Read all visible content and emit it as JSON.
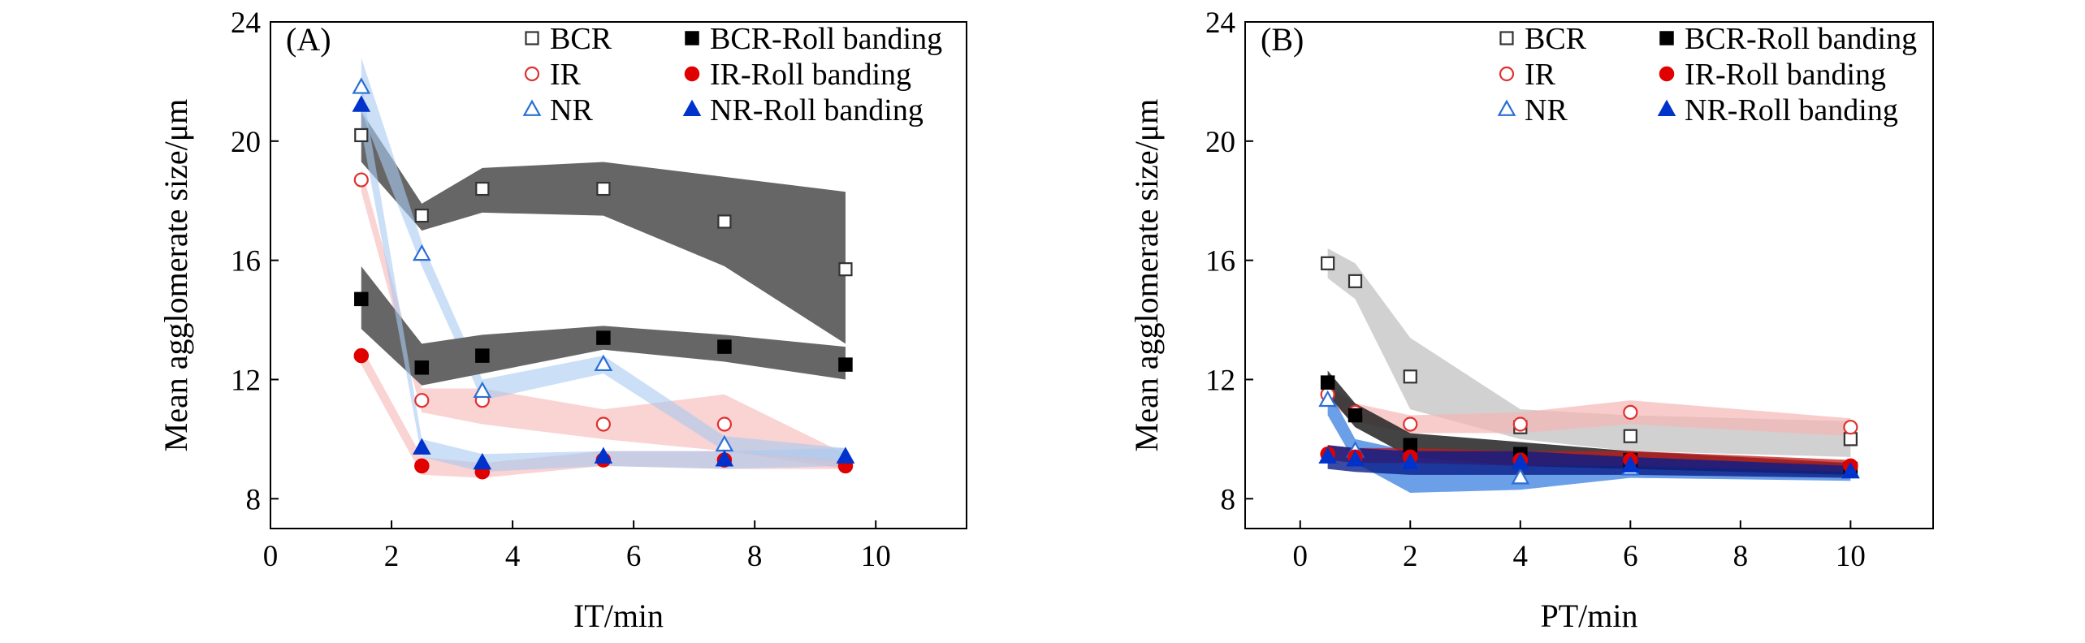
{
  "chart_data": [
    {
      "type": "scatter",
      "panel_label": "(A)",
      "xlabel": "IT/min",
      "ylabel": "Mean agglomerate size/μm",
      "xlim": [
        0,
        11.5
      ],
      "ylim": [
        7,
        24
      ],
      "xticks": [
        0,
        2,
        4,
        6,
        8,
        10
      ],
      "yticks": [
        8,
        12,
        16,
        20,
        24
      ],
      "legend_position": "top-right",
      "series": [
        {
          "key": "bcr",
          "name": "BCR",
          "marker": "square-open",
          "color": "#333333",
          "band_color": "#666666",
          "band_opacity": 1.0,
          "x": [
            1.5,
            2.5,
            3.5,
            5.5,
            7.5,
            9.5
          ],
          "y": [
            20.2,
            17.5,
            18.4,
            18.4,
            17.3,
            15.7
          ],
          "band_lower": [
            19.3,
            17.0,
            17.6,
            17.5,
            15.8,
            13.2
          ],
          "band_upper": [
            21.0,
            17.9,
            19.1,
            19.3,
            18.8,
            18.3
          ]
        },
        {
          "key": "bcr_roll",
          "name": "BCR-Roll banding",
          "marker": "square-filled",
          "color": "#000000",
          "band_color": "#666666",
          "band_opacity": 1.0,
          "x": [
            1.5,
            2.5,
            3.5,
            5.5,
            7.5,
            9.5
          ],
          "y": [
            14.7,
            12.4,
            12.8,
            13.4,
            13.1,
            12.5
          ],
          "band_lower": [
            13.7,
            11.8,
            12.2,
            13.0,
            12.6,
            12.0
          ],
          "band_upper": [
            15.8,
            13.2,
            13.5,
            13.8,
            13.5,
            13.1
          ]
        },
        {
          "key": "ir",
          "name": "IR",
          "marker": "circle-open",
          "color": "#e03030",
          "band_color": "#f6b6b6",
          "band_opacity": 0.6,
          "x": [
            1.5,
            2.5,
            3.5,
            5.5,
            7.5,
            9.5
          ],
          "y": [
            18.7,
            11.3,
            11.3,
            10.5,
            10.5,
            9.2
          ],
          "band_lower": [
            18.3,
            10.9,
            10.5,
            10.0,
            9.6,
            9.0
          ],
          "band_upper": [
            19.1,
            11.7,
            11.7,
            11.0,
            11.5,
            9.5
          ]
        },
        {
          "key": "ir_roll",
          "name": "IR-Roll banding",
          "marker": "circle-filled",
          "color": "#e00000",
          "band_color": "#f6b6b6",
          "band_opacity": 0.6,
          "x": [
            1.5,
            2.5,
            3.5,
            5.5,
            7.5,
            9.5
          ],
          "y": [
            12.8,
            9.1,
            8.9,
            9.3,
            9.3,
            9.1
          ],
          "band_lower": [
            12.5,
            8.8,
            8.7,
            9.1,
            9.0,
            9.0
          ],
          "band_upper": [
            13.1,
            9.4,
            9.2,
            9.6,
            9.6,
            9.3
          ]
        },
        {
          "key": "nr",
          "name": "NR",
          "marker": "triangle-open",
          "color": "#2a6fd6",
          "band_color": "#a9c9f0",
          "band_opacity": 0.6,
          "x": [
            1.5,
            2.5,
            3.5,
            5.5,
            7.5,
            9.5
          ],
          "y": [
            21.8,
            16.2,
            11.6,
            12.5,
            9.8,
            9.4
          ],
          "band_lower": [
            21.0,
            15.8,
            11.3,
            12.2,
            9.6,
            9.2
          ],
          "band_upper": [
            22.8,
            16.6,
            12.0,
            12.8,
            10.1,
            9.7
          ]
        },
        {
          "key": "nr_roll",
          "name": "NR-Roll banding",
          "marker": "triangle-filled",
          "color": "#0033cc",
          "band_color": "#a9c9f0",
          "band_opacity": 0.6,
          "x": [
            1.5,
            2.5,
            3.5,
            5.5,
            7.5,
            9.5
          ],
          "y": [
            21.2,
            9.7,
            9.2,
            9.4,
            9.3,
            9.4
          ],
          "band_lower": [
            20.4,
            9.4,
            8.9,
            9.1,
            9.0,
            9.1
          ],
          "band_upper": [
            22.0,
            10.0,
            9.5,
            9.6,
            9.6,
            9.7
          ]
        }
      ]
    },
    {
      "type": "scatter",
      "panel_label": "(B)",
      "xlabel": "PT/min",
      "ylabel": "Mean agglomerate size/μm",
      "xlim": [
        -1,
        11.5
      ],
      "ylim": [
        7,
        24
      ],
      "xticks": [
        0,
        2,
        4,
        6,
        8,
        10
      ],
      "yticks": [
        8,
        12,
        16,
        20,
        24
      ],
      "legend_position": "top-right",
      "series": [
        {
          "key": "bcr",
          "name": "BCR",
          "marker": "square-open",
          "color": "#333333",
          "band_color": "#bdbdbd",
          "band_opacity": 0.7,
          "x": [
            0.5,
            1,
            2,
            4,
            6,
            10
          ],
          "y": [
            15.9,
            15.3,
            12.1,
            10.4,
            10.1,
            10.0
          ],
          "band_lower": [
            15.4,
            14.7,
            11.0,
            10.0,
            9.6,
            9.4
          ],
          "band_upper": [
            16.4,
            15.9,
            13.4,
            11.0,
            10.8,
            10.6
          ]
        },
        {
          "key": "bcr_roll",
          "name": "BCR-Roll banding",
          "marker": "square-filled",
          "color": "#000000",
          "band_color": "#222222",
          "band_opacity": 0.85,
          "x": [
            0.5,
            1,
            2,
            4,
            6,
            10
          ],
          "y": [
            11.9,
            10.8,
            9.8,
            9.5,
            9.3,
            9.0
          ],
          "band_lower": [
            11.5,
            10.4,
            9.4,
            9.1,
            9.0,
            8.8
          ],
          "band_upper": [
            12.3,
            11.2,
            10.2,
            9.9,
            9.6,
            9.2
          ]
        },
        {
          "key": "ir",
          "name": "IR",
          "marker": "circle-open",
          "color": "#e03030",
          "band_color": "#f6b6b6",
          "band_opacity": 0.7,
          "x": [
            0.5,
            1,
            2,
            4,
            6,
            10
          ],
          "y": [
            11.5,
            10.9,
            10.5,
            10.5,
            10.9,
            10.4
          ],
          "band_lower": [
            11.2,
            10.6,
            10.2,
            10.2,
            10.5,
            10.1
          ],
          "band_upper": [
            11.8,
            11.2,
            10.8,
            10.9,
            11.3,
            10.7
          ]
        },
        {
          "key": "ir_roll",
          "name": "IR-Roll banding",
          "marker": "circle-filled",
          "color": "#e00000",
          "band_color": "#c21a1a",
          "band_opacity": 0.75,
          "x": [
            0.5,
            1,
            2,
            4,
            6,
            10
          ],
          "y": [
            9.5,
            9.4,
            9.4,
            9.3,
            9.3,
            9.1
          ],
          "band_lower": [
            9.3,
            9.2,
            9.2,
            9.1,
            9.1,
            8.9
          ],
          "band_upper": [
            9.8,
            9.7,
            9.7,
            9.6,
            9.6,
            9.3
          ]
        },
        {
          "key": "nr",
          "name": "NR",
          "marker": "triangle-open",
          "color": "#2a6fd6",
          "band_color": "#3a7fe0",
          "band_opacity": 0.75,
          "x": [
            0.5,
            1,
            2,
            4,
            6,
            10
          ],
          "y": [
            11.3,
            9.6,
            9.2,
            8.7,
            9.0,
            8.9
          ],
          "band_lower": [
            10.8,
            9.2,
            8.2,
            8.3,
            8.7,
            8.6
          ],
          "band_upper": [
            11.7,
            10.0,
            9.6,
            9.1,
            9.3,
            9.2
          ]
        },
        {
          "key": "nr_roll",
          "name": "NR-Roll banding",
          "marker": "triangle-filled",
          "color": "#0033cc",
          "band_color": "#0a1e8a",
          "band_opacity": 0.8,
          "x": [
            0.5,
            1,
            2,
            4,
            6,
            10
          ],
          "y": [
            9.4,
            9.3,
            9.2,
            9.2,
            9.1,
            8.9
          ],
          "band_lower": [
            9.0,
            8.9,
            8.8,
            8.8,
            8.8,
            8.7
          ],
          "band_upper": [
            9.8,
            9.7,
            9.6,
            9.6,
            9.4,
            9.1
          ]
        }
      ]
    }
  ]
}
